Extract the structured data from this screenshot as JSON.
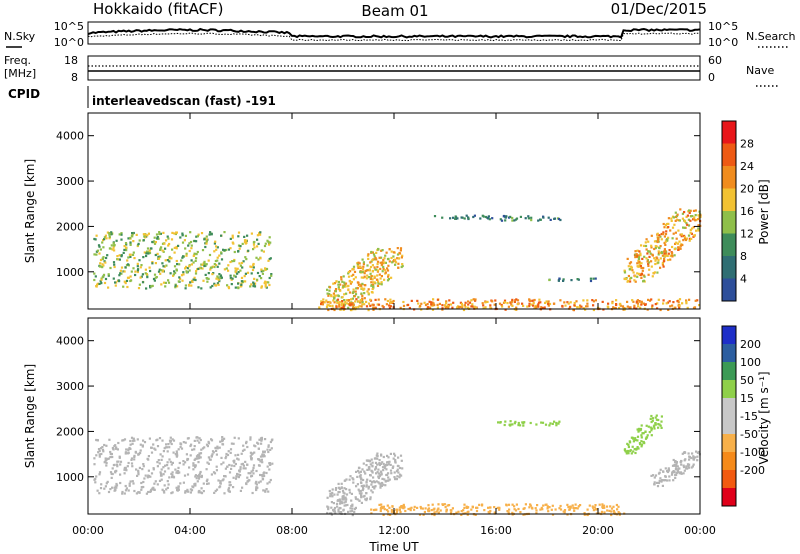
{
  "header": {
    "station": "Hokkaido (fitACF)",
    "beam": "Beam 01",
    "date": "01/Dec/2015"
  },
  "noise_panel": {
    "left_label": "N.Sky",
    "right_label": "N.Search",
    "left_ticks": [
      "10^5",
      "10^0"
    ],
    "right_ticks": [
      "10^5",
      "10^0"
    ]
  },
  "freq_panel": {
    "left_label_line1": "Freq.",
    "left_label_line2": "[MHz]",
    "right_label": "Nave",
    "left_ticks": [
      "18",
      "8"
    ],
    "right_ticks": [
      "60",
      "0"
    ]
  },
  "cpid": {
    "label": "CPID",
    "text": "interleavedscan (fast) -191"
  },
  "colors": {
    "power_scale": [
      "#1a2fe0",
      "#2e4f9a",
      "#2f6e73",
      "#3e8c5a",
      "#8fbf4a",
      "#f2c233",
      "#f08c1e",
      "#ee5a14",
      "#e8161a"
    ],
    "velocity_scale": [
      "#e0001a",
      "#f25a10",
      "#f58a1a",
      "#f7b04a",
      "#c8c8c8",
      "#c8c8c8",
      "#8fd04a",
      "#3c9a55",
      "#2c5ea0",
      "#1e2fc8"
    ],
    "ground_scatter": "#b4b4b4"
  },
  "chart_data": [
    {
      "type": "heatmap",
      "title": "",
      "parameter": "Power",
      "ylabel": "Slant Range [km]",
      "xlabel": "Time UT",
      "x_ticks": [
        "00:00",
        "04:00",
        "08:00",
        "12:00",
        "16:00",
        "20:00",
        "00:00"
      ],
      "xlim_hours": [
        0,
        24
      ],
      "ylim_km": [
        180,
        4500
      ],
      "y_ticks": [
        "1000",
        "2000",
        "3000",
        "4000"
      ],
      "colorbar": {
        "label": "Power [dB]",
        "range": [
          0,
          32
        ],
        "ticks": [
          "4",
          "8",
          "12",
          "16",
          "20",
          "24",
          "28"
        ]
      },
      "echo_regions": [
        {
          "t_start": 0.2,
          "t_end": 7.2,
          "r_low": 650,
          "r_high": 1900,
          "value": 18,
          "pattern": "tilted streaks"
        },
        {
          "t_start": 9.3,
          "t_end": 12.3,
          "r_low": 180,
          "r_high": 1550,
          "value": 22,
          "pattern": "diagonal arc"
        },
        {
          "t_start": 9.0,
          "t_end": 24.0,
          "r_low": 180,
          "r_high": 420,
          "value": 26,
          "pattern": "near-range band"
        },
        {
          "t_start": 13.5,
          "t_end": 16.5,
          "r_low": 2180,
          "r_high": 2260,
          "value": 10,
          "pattern": "thin band"
        },
        {
          "t_start": 16.0,
          "t_end": 18.5,
          "r_low": 2150,
          "r_high": 2250,
          "value": 12,
          "pattern": "thin band"
        },
        {
          "t_start": 18.0,
          "t_end": 20.0,
          "r_low": 820,
          "r_high": 880,
          "value": 12,
          "pattern": "thin band"
        },
        {
          "t_start": 21.0,
          "t_end": 24.0,
          "r_low": 800,
          "r_high": 2400,
          "value": 24,
          "pattern": "descending arc"
        }
      ]
    },
    {
      "type": "heatmap",
      "title": "",
      "parameter": "Velocity",
      "ylabel": "Slant Range [km]",
      "xlabel": "Time UT",
      "x_ticks": [
        "00:00",
        "04:00",
        "08:00",
        "12:00",
        "16:00",
        "20:00",
        "00:00"
      ],
      "xlim_hours": [
        0,
        24
      ],
      "ylim_km": [
        180,
        4500
      ],
      "y_ticks": [
        "1000",
        "2000",
        "3000",
        "4000"
      ],
      "colorbar": {
        "label": "Velocity [m s⁻¹]",
        "ticks": [
          "200",
          "100",
          "50",
          "15",
          "-15",
          "-50",
          "-100",
          "-200"
        ]
      },
      "echo_regions": [
        {
          "t_start": 0.2,
          "t_end": 7.2,
          "r_low": 650,
          "r_high": 1900,
          "value": 0,
          "pattern": "tilted streaks"
        },
        {
          "t_start": 9.3,
          "t_end": 12.3,
          "r_low": 180,
          "r_high": 1550,
          "value": 0,
          "pattern": "diagonal arc"
        },
        {
          "t_start": 11.0,
          "t_end": 21.0,
          "r_low": 180,
          "r_high": 420,
          "value": -40,
          "pattern": "near-range band"
        },
        {
          "t_start": 16.0,
          "t_end": 18.5,
          "r_low": 2150,
          "r_high": 2250,
          "value": 40,
          "pattern": "thin band"
        },
        {
          "t_start": 21.0,
          "t_end": 22.5,
          "r_low": 1500,
          "r_high": 2400,
          "value": 40,
          "pattern": "descending arc"
        },
        {
          "t_start": 22.0,
          "t_end": 24.0,
          "r_low": 800,
          "r_high": 1600,
          "value": 0,
          "pattern": "descending arc"
        }
      ]
    }
  ]
}
